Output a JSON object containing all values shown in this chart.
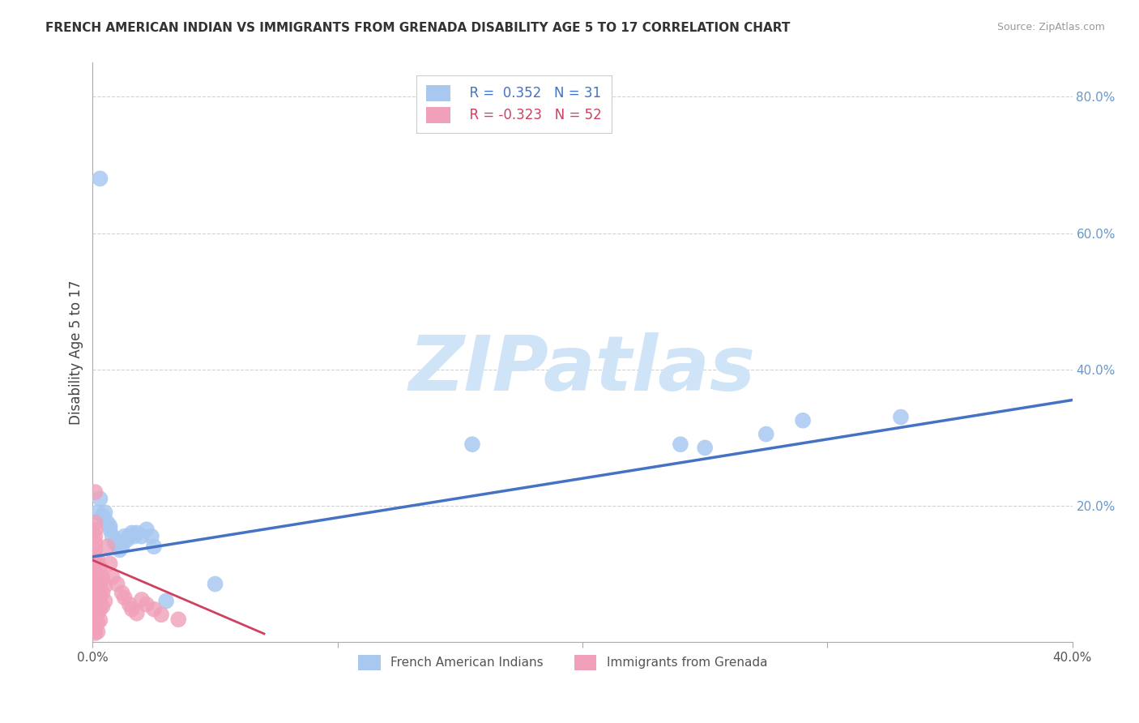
{
  "title": "FRENCH AMERICAN INDIAN VS IMMIGRANTS FROM GRENADA DISABILITY AGE 5 TO 17 CORRELATION CHART",
  "source": "Source: ZipAtlas.com",
  "ylabel": "Disability Age 5 to 17",
  "xlim": [
    0.0,
    0.4
  ],
  "ylim": [
    0.0,
    0.85
  ],
  "xticks": [
    0.0,
    0.1,
    0.2,
    0.3,
    0.4
  ],
  "xticklabels_show": [
    "0.0%",
    "",
    "",
    "",
    "40.0%"
  ],
  "yticks": [
    0.0,
    0.2,
    0.4,
    0.6,
    0.8
  ],
  "yticklabels": [
    "",
    "20.0%",
    "40.0%",
    "60.0%",
    "80.0%"
  ],
  "legend_label1": "French American Indians",
  "legend_label2": "Immigrants from Grenada",
  "color_blue": "#a8c8f0",
  "color_pink": "#f0a0b8",
  "line_color_blue": "#4472c4",
  "line_color_pink": "#d04060",
  "tick_color_right": "#6699cc",
  "watermark": "ZIPatlas",
  "watermark_color": "#d0e4f8",
  "blue_scatter": [
    [
      0.003,
      0.68
    ],
    [
      0.002,
      0.19
    ],
    [
      0.003,
      0.21
    ],
    [
      0.004,
      0.185
    ],
    [
      0.005,
      0.19
    ],
    [
      0.006,
      0.175
    ],
    [
      0.007,
      0.165
    ],
    [
      0.007,
      0.17
    ],
    [
      0.008,
      0.155
    ],
    [
      0.009,
      0.145
    ],
    [
      0.01,
      0.145
    ],
    [
      0.011,
      0.135
    ],
    [
      0.012,
      0.14
    ],
    [
      0.013,
      0.155
    ],
    [
      0.014,
      0.15
    ],
    [
      0.015,
      0.155
    ],
    [
      0.016,
      0.16
    ],
    [
      0.017,
      0.155
    ],
    [
      0.018,
      0.16
    ],
    [
      0.02,
      0.155
    ],
    [
      0.022,
      0.165
    ],
    [
      0.024,
      0.155
    ],
    [
      0.025,
      0.14
    ],
    [
      0.03,
      0.06
    ],
    [
      0.05,
      0.085
    ],
    [
      0.155,
      0.29
    ],
    [
      0.24,
      0.29
    ],
    [
      0.25,
      0.285
    ],
    [
      0.275,
      0.305
    ],
    [
      0.29,
      0.325
    ],
    [
      0.33,
      0.33
    ]
  ],
  "pink_scatter": [
    [
      0.001,
      0.22
    ],
    [
      0.001,
      0.175
    ],
    [
      0.001,
      0.165
    ],
    [
      0.001,
      0.155
    ],
    [
      0.001,
      0.145
    ],
    [
      0.001,
      0.135
    ],
    [
      0.001,
      0.125
    ],
    [
      0.001,
      0.115
    ],
    [
      0.001,
      0.105
    ],
    [
      0.001,
      0.095
    ],
    [
      0.001,
      0.088
    ],
    [
      0.001,
      0.08
    ],
    [
      0.001,
      0.072
    ],
    [
      0.001,
      0.065
    ],
    [
      0.001,
      0.058
    ],
    [
      0.001,
      0.05
    ],
    [
      0.001,
      0.043
    ],
    [
      0.001,
      0.036
    ],
    [
      0.001,
      0.028
    ],
    [
      0.001,
      0.02
    ],
    [
      0.001,
      0.013
    ],
    [
      0.002,
      0.12
    ],
    [
      0.002,
      0.095
    ],
    [
      0.002,
      0.075
    ],
    [
      0.002,
      0.058
    ],
    [
      0.002,
      0.042
    ],
    [
      0.002,
      0.028
    ],
    [
      0.002,
      0.015
    ],
    [
      0.003,
      0.11
    ],
    [
      0.003,
      0.085
    ],
    [
      0.003,
      0.065
    ],
    [
      0.003,
      0.048
    ],
    [
      0.003,
      0.032
    ],
    [
      0.004,
      0.095
    ],
    [
      0.004,
      0.072
    ],
    [
      0.004,
      0.052
    ],
    [
      0.005,
      0.082
    ],
    [
      0.005,
      0.06
    ],
    [
      0.006,
      0.14
    ],
    [
      0.007,
      0.115
    ],
    [
      0.008,
      0.095
    ],
    [
      0.01,
      0.085
    ],
    [
      0.012,
      0.072
    ],
    [
      0.013,
      0.065
    ],
    [
      0.015,
      0.055
    ],
    [
      0.016,
      0.048
    ],
    [
      0.018,
      0.042
    ],
    [
      0.02,
      0.062
    ],
    [
      0.022,
      0.055
    ],
    [
      0.025,
      0.048
    ],
    [
      0.028,
      0.04
    ],
    [
      0.035,
      0.033
    ]
  ],
  "blue_line_x": [
    0.0,
    0.4
  ],
  "blue_line_y": [
    0.125,
    0.355
  ],
  "pink_line_x": [
    0.0,
    0.07
  ],
  "pink_line_y": [
    0.12,
    0.012
  ]
}
